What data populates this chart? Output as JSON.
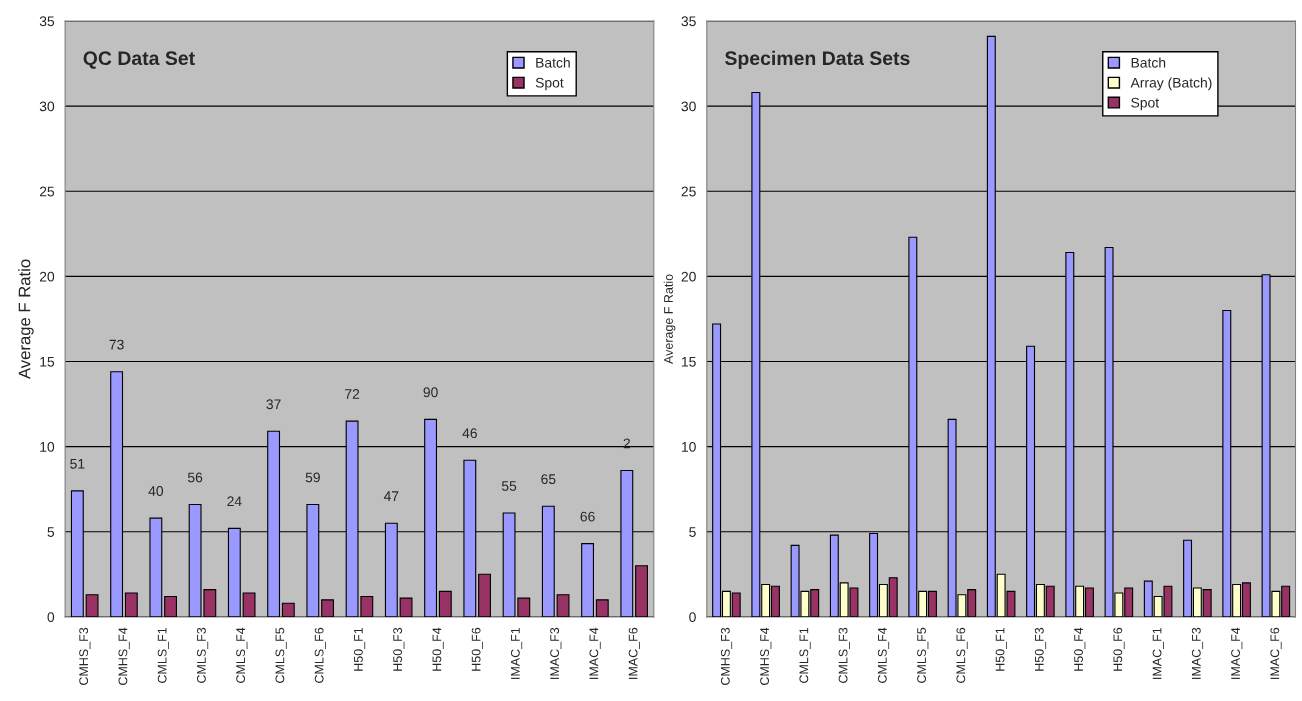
{
  "chart_data": [
    {
      "type": "bar",
      "title": "QC Data Set",
      "ylabel": "Average F Ratio",
      "categories": [
        "CMHS_F3",
        "CMHS_F4",
        "CMLS_F1",
        "CMLS_F3",
        "CMLS_F4",
        "CMLS_F5",
        "CMLS_F6",
        "H50_F1",
        "H50_F3",
        "H50_F4",
        "H50_F6",
        "IMAC_F1",
        "IMAC_F3",
        "IMAC_F4",
        "IMAC_F6"
      ],
      "series": [
        {
          "name": "Batch",
          "color": "#9999ff",
          "values": [
            7.4,
            14.4,
            5.8,
            6.6,
            5.2,
            10.9,
            6.6,
            11.5,
            5.5,
            11.6,
            9.2,
            6.1,
            6.5,
            4.3,
            8.6
          ]
        },
        {
          "name": "Spot",
          "color": "#993366",
          "values": [
            1.3,
            1.4,
            1.2,
            1.6,
            1.4,
            0.8,
            1.0,
            1.2,
            1.1,
            1.5,
            2.5,
            1.1,
            1.3,
            1.0,
            3.0
          ]
        }
      ],
      "annotations": [
        {
          "text": "51",
          "x": "CMHS_F3",
          "y": 7.4
        },
        {
          "text": "73",
          "x": "CMHS_F4",
          "y": 14.4
        },
        {
          "text": "40",
          "x": "CMLS_F1",
          "y": 5.8
        },
        {
          "text": "56",
          "x": "CMLS_F3",
          "y": 6.6
        },
        {
          "text": "24",
          "x": "CMLS_F4",
          "y": 5.2
        },
        {
          "text": "37",
          "x": "CMLS_F5",
          "y": 10.9
        },
        {
          "text": "59",
          "x": "CMLS_F6",
          "y": 6.6
        },
        {
          "text": "72",
          "x": "H50_F1",
          "y": 11.5
        },
        {
          "text": "47",
          "x": "H50_F3",
          "y": 5.5
        },
        {
          "text": "90",
          "x": "H50_F4",
          "y": 11.6
        },
        {
          "text": "46",
          "x": "H50_F6",
          "y": 9.2
        },
        {
          "text": "55",
          "x": "IMAC_F1",
          "y": 6.1
        },
        {
          "text": "65",
          "x": "IMAC_F3",
          "y": 6.5
        },
        {
          "text": "66",
          "x": "IMAC_F4",
          "y": 4.3
        },
        {
          "text": "2",
          "x": "IMAC_F6",
          "y": 8.6
        }
      ],
      "ylim": [
        0,
        35
      ],
      "yticks": [
        0,
        5,
        10,
        15,
        20,
        25,
        30,
        35
      ],
      "grid": "y",
      "legend": "top right"
    },
    {
      "type": "bar",
      "title": "Specimen Data Sets",
      "ylabel": "Average F Ratio",
      "categories": [
        "CMHS_F3",
        "CMHS_F4",
        "CMLS_F1",
        "CMLS_F3",
        "CMLS_F4",
        "CMLS_F5",
        "CMLS_F6",
        "H50_F1",
        "H50_F3",
        "H50_F4",
        "H50_F6",
        "IMAC_F1",
        "IMAC_F3",
        "IMAC_F4",
        "IMAC_F6"
      ],
      "series": [
        {
          "name": "Batch",
          "color": "#9999ff",
          "values": [
            17.2,
            30.8,
            4.2,
            4.8,
            4.9,
            22.3,
            11.6,
            34.1,
            15.9,
            21.4,
            21.7,
            2.1,
            4.5,
            18.0,
            20.1
          ]
        },
        {
          "name": "Array (Batch)",
          "color": "#ffffcc",
          "values": [
            1.5,
            1.9,
            1.5,
            2.0,
            1.9,
            1.5,
            1.3,
            2.5,
            1.9,
            1.8,
            1.4,
            1.2,
            1.7,
            1.9,
            1.5
          ]
        },
        {
          "name": "Spot",
          "color": "#993366",
          "values": [
            1.4,
            1.8,
            1.6,
            1.7,
            2.3,
            1.5,
            1.6,
            1.5,
            1.8,
            1.7,
            1.7,
            1.8,
            1.6,
            2.0,
            1.8
          ]
        }
      ],
      "ylim": [
        0,
        35
      ],
      "yticks": [
        0,
        5,
        10,
        15,
        20,
        25,
        30,
        35
      ],
      "grid": "y",
      "legend": "top right"
    }
  ]
}
